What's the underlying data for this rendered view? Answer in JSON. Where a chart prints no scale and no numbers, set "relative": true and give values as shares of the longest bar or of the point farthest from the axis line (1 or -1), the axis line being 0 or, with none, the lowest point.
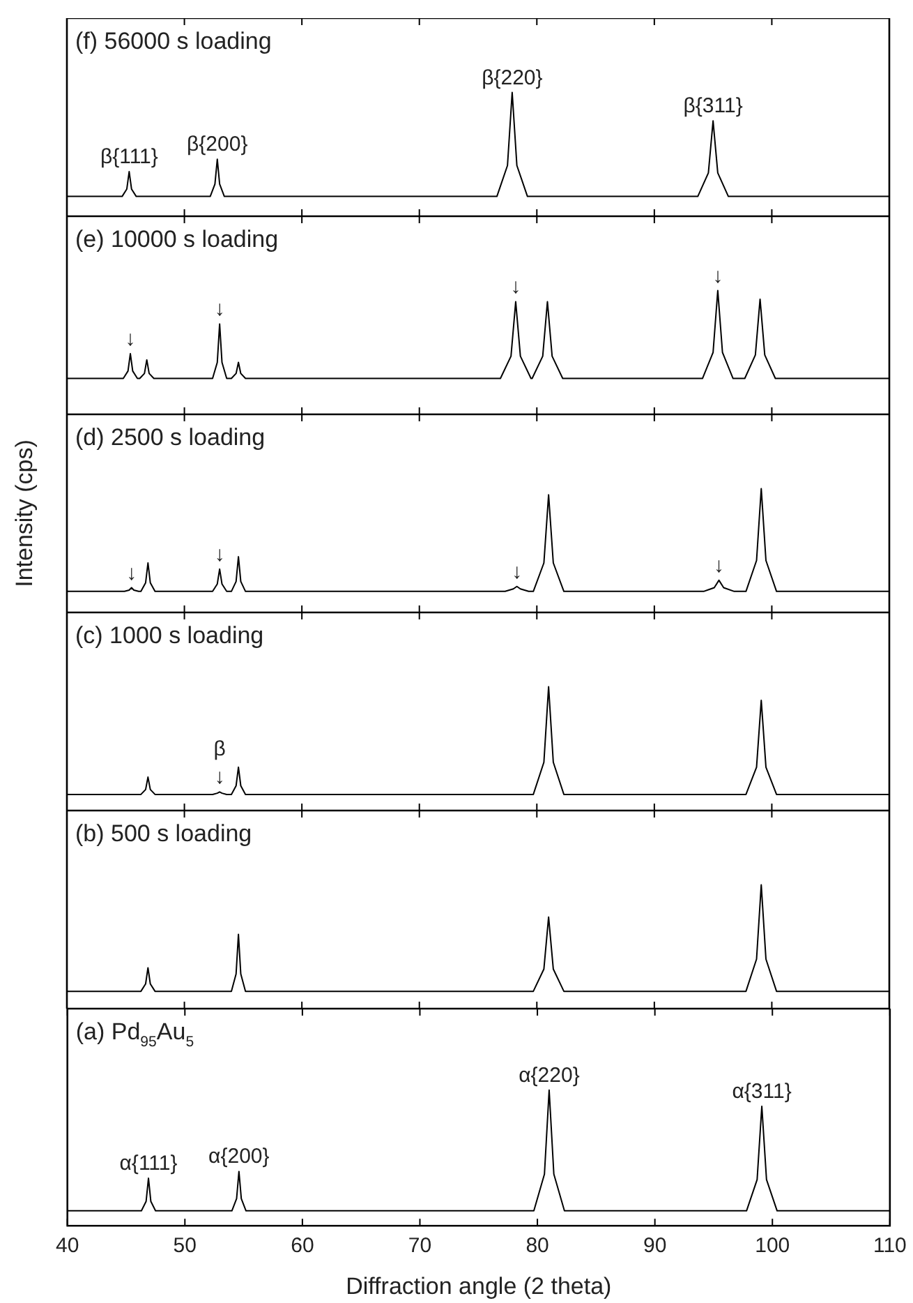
{
  "chart_data": [
    {
      "type": "line",
      "title": "(f) 56000 s loading",
      "relative": true,
      "color": "#000000",
      "xlim": [
        40,
        110
      ],
      "xticks": [
        40,
        50,
        60,
        70,
        80,
        90,
        100,
        110
      ],
      "tick_labels": false,
      "x": [
        40,
        44.7,
        45.1,
        45.3,
        45.5,
        45.9,
        52.2,
        52.6,
        52.8,
        53.0,
        53.4,
        76.6,
        77.5,
        77.9,
        78.3,
        79.2,
        93.7,
        94.6,
        95.0,
        95.4,
        96.3,
        110
      ],
      "values": [
        0.16,
        0.16,
        0.22,
        0.36,
        0.22,
        0.16,
        0.16,
        0.26,
        0.46,
        0.26,
        0.16,
        0.16,
        0.41,
        1,
        0.41,
        0.16,
        0.16,
        0.35,
        0.77,
        0.35,
        0.16,
        0.16
      ],
      "annotations": [
        {
          "text": "β{111}",
          "x": 45.3,
          "y": 0.36
        },
        {
          "text": "β{200}",
          "x": 52.8,
          "y": 0.46
        },
        {
          "text": "β{220}",
          "x": 77.9,
          "y": 1
        },
        {
          "text": "β{311}",
          "x": 95.0,
          "y": 0.77
        }
      ]
    },
    {
      "type": "line",
      "title": "(e) 10000 s loading",
      "relative": true,
      "color": "#000000",
      "xlim": [
        40,
        110
      ],
      "xticks": [
        40,
        50,
        60,
        70,
        80,
        90,
        100,
        110
      ],
      "tick_labels": false,
      "x": [
        40,
        44.8,
        45.2,
        45.4,
        45.6,
        46.0,
        46.2,
        46.6,
        46.8,
        47.0,
        47.4,
        52.4,
        52.8,
        53.0,
        53.2,
        53.6,
        54.0,
        54.4,
        54.6,
        54.8,
        55.2,
        76.9,
        77.8,
        78.2,
        78.6,
        79.5,
        79.6,
        80.5,
        80.9,
        81.3,
        82.2,
        94.1,
        95.0,
        95.4,
        95.8,
        96.7,
        97.7,
        98.6,
        99.0,
        99.4,
        100.3,
        110
      ],
      "values": [
        0.29,
        0.29,
        0.35,
        0.49,
        0.35,
        0.29,
        0.29,
        0.33,
        0.44,
        0.33,
        0.29,
        0.29,
        0.42,
        0.73,
        0.42,
        0.29,
        0.29,
        0.33,
        0.42,
        0.33,
        0.29,
        0.29,
        0.47,
        0.91,
        0.47,
        0.29,
        0.29,
        0.47,
        0.91,
        0.47,
        0.29,
        0.29,
        0.5,
        1,
        0.5,
        0.29,
        0.29,
        0.48,
        0.93,
        0.48,
        0.29,
        0.29
      ],
      "annotations": [
        {
          "text": "↓",
          "x": 45.4,
          "y": 0.49
        },
        {
          "text": "↓",
          "x": 53.0,
          "y": 0.73
        },
        {
          "text": "↓",
          "x": 78.2,
          "y": 0.91
        },
        {
          "text": "↓",
          "x": 95.4,
          "y": 1
        }
      ]
    },
    {
      "type": "line",
      "title": "(d) 2500 s loading",
      "ylabel": "Intensity (cps)",
      "relative": true,
      "color": "#000000",
      "xlim": [
        40,
        110
      ],
      "xticks": [
        40,
        50,
        60,
        70,
        80,
        90,
        100,
        110
      ],
      "tick_labels": false,
      "x": [
        40,
        44.9,
        45.3,
        45.5,
        45.7,
        46.1,
        46.3,
        46.7,
        46.9,
        47.1,
        47.5,
        52.4,
        52.8,
        53.0,
        53.2,
        53.6,
        54.0,
        54.4,
        54.6,
        54.8,
        55.2,
        77.3,
        78.0,
        78.3,
        78.6,
        79.3,
        79.7,
        80.6,
        81.0,
        81.4,
        82.3,
        94.2,
        95.1,
        95.5,
        95.9,
        96.8,
        97.8,
        98.7,
        99.1,
        99.5,
        100.4,
        110
      ],
      "values": [
        0.17,
        0.17,
        0.18,
        0.2,
        0.18,
        0.17,
        0.17,
        0.24,
        0.4,
        0.24,
        0.17,
        0.17,
        0.23,
        0.35,
        0.23,
        0.17,
        0.17,
        0.25,
        0.45,
        0.25,
        0.17,
        0.17,
        0.19,
        0.21,
        0.19,
        0.17,
        0.17,
        0.4,
        0.95,
        0.4,
        0.17,
        0.17,
        0.2,
        0.26,
        0.2,
        0.17,
        0.17,
        0.42,
        1,
        0.42,
        0.17,
        0.17
      ],
      "annotations": [
        {
          "text": "↓",
          "x": 45.5,
          "y": 0.2
        },
        {
          "text": "↓",
          "x": 53.0,
          "y": 0.35
        },
        {
          "text": "↓",
          "x": 78.3,
          "y": 0.21
        },
        {
          "text": "↓",
          "x": 95.5,
          "y": 0.26
        }
      ]
    },
    {
      "type": "line",
      "title": "(c) 1000 s loading",
      "relative": true,
      "color": "#000000",
      "xlim": [
        40,
        110
      ],
      "xticks": [
        40,
        50,
        60,
        70,
        80,
        90,
        100,
        110
      ],
      "tick_labels": false,
      "x": [
        40,
        46.3,
        46.7,
        46.9,
        47.1,
        47.5,
        52.4,
        52.8,
        53.0,
        53.2,
        53.6,
        54.0,
        54.4,
        54.6,
        54.8,
        55.2,
        79.7,
        80.6,
        81.0,
        81.4,
        82.3,
        97.8,
        98.7,
        99.1,
        99.5,
        100.4,
        110
      ],
      "values": [
        0.13,
        0.13,
        0.17,
        0.27,
        0.17,
        0.13,
        0.13,
        0.14,
        0.15,
        0.14,
        0.13,
        0.13,
        0.2,
        0.35,
        0.2,
        0.13,
        0.13,
        0.39,
        1,
        0.39,
        0.13,
        0.13,
        0.35,
        0.89,
        0.35,
        0.13,
        0.13
      ],
      "annotations": [
        {
          "text": "β\n↓",
          "x": 53.0,
          "y": 0.15
        }
      ]
    },
    {
      "type": "line",
      "title": "(b) 500 s loading",
      "relative": true,
      "color": "#000000",
      "xlim": [
        40,
        110
      ],
      "xticks": [
        40,
        50,
        60,
        70,
        80,
        90,
        100,
        110
      ],
      "tick_labels": false,
      "x": [
        40,
        46.3,
        46.7,
        46.9,
        47.1,
        47.5,
        54.0,
        54.4,
        54.6,
        54.8,
        55.2,
        79.7,
        80.6,
        81.0,
        81.4,
        82.3,
        97.8,
        98.7,
        99.1,
        99.5,
        100.4,
        110
      ],
      "values": [
        0.14,
        0.14,
        0.2,
        0.33,
        0.2,
        0.14,
        0.14,
        0.28,
        0.6,
        0.28,
        0.14,
        0.14,
        0.32,
        0.74,
        0.32,
        0.14,
        0.14,
        0.4,
        1,
        0.4,
        0.14,
        0.14
      ]
    },
    {
      "type": "line",
      "title": "(a) Pd$_{95}$Au$_{5}$",
      "xlabel": "Diffraction angle (2 theta)",
      "relative": true,
      "color": "#000000",
      "xlim": [
        40,
        110
      ],
      "xticks": [
        40,
        50,
        60,
        70,
        80,
        90,
        100,
        110
      ],
      "tick_labels": "x",
      "x": [
        40,
        46.3,
        46.7,
        46.9,
        47.1,
        47.5,
        54.0,
        54.4,
        54.6,
        54.8,
        55.2,
        79.7,
        80.6,
        81.0,
        81.4,
        82.3,
        97.8,
        98.7,
        99.1,
        99.5,
        100.4,
        110
      ],
      "values": [
        0.11,
        0.11,
        0.18,
        0.35,
        0.18,
        0.11,
        0.11,
        0.2,
        0.4,
        0.2,
        0.11,
        0.11,
        0.38,
        1,
        0.38,
        0.11,
        0.11,
        0.34,
        0.88,
        0.34,
        0.11,
        0.11
      ],
      "annotations": [
        {
          "text": "α{111}",
          "x": 46.9,
          "y": 0.35
        },
        {
          "text": "α{200}",
          "x": 54.6,
          "y": 0.4
        },
        {
          "text": "α{220}",
          "x": 81.0,
          "y": 1
        },
        {
          "text": "α{311}",
          "x": 99.1,
          "y": 0.88
        }
      ]
    }
  ]
}
